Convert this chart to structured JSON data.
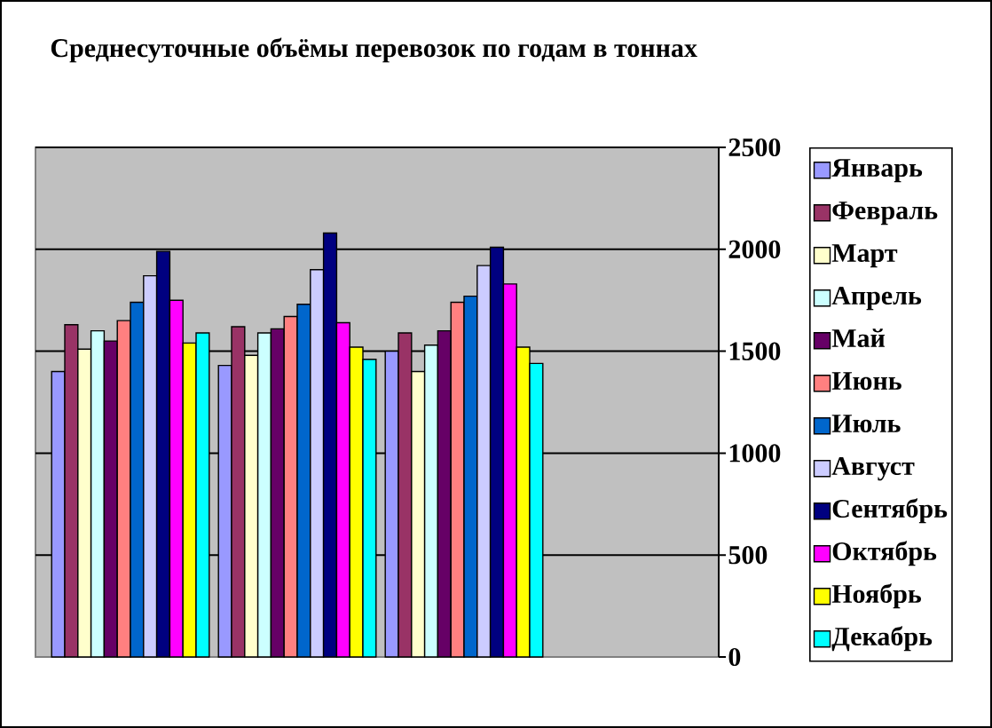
{
  "chart_data": {
    "type": "bar",
    "title": "Среднесуточные объёмы перевозок по годам в тоннах",
    "categories": [
      null,
      null,
      null
    ],
    "series": [
      {
        "name": "Январь",
        "color": "#9999ff",
        "values": [
          1400,
          1430,
          1500
        ]
      },
      {
        "name": "Февраль",
        "color": "#993366",
        "values": [
          1630,
          1620,
          1590
        ]
      },
      {
        "name": "Март",
        "color": "#ffffcc",
        "values": [
          1510,
          1480,
          1400
        ]
      },
      {
        "name": "Апрель",
        "color": "#ccffff",
        "values": [
          1600,
          1590,
          1530
        ]
      },
      {
        "name": "Май",
        "color": "#660066",
        "values": [
          1550,
          1610,
          1600
        ]
      },
      {
        "name": "Июнь",
        "color": "#ff8080",
        "values": [
          1650,
          1670,
          1740
        ]
      },
      {
        "name": "Июль",
        "color": "#0066cc",
        "values": [
          1740,
          1730,
          1770
        ]
      },
      {
        "name": "Август",
        "color": "#ccccff",
        "values": [
          1870,
          1900,
          1920
        ]
      },
      {
        "name": "Сентябрь",
        "color": "#000080",
        "values": [
          1990,
          2080,
          2010
        ]
      },
      {
        "name": "Октябрь",
        "color": "#ff00ff",
        "values": [
          1750,
          1640,
          1830
        ]
      },
      {
        "name": "Ноябрь",
        "color": "#ffff00",
        "values": [
          1540,
          1520,
          1520
        ]
      },
      {
        "name": "Декабрь",
        "color": "#00ffff",
        "values": [
          1590,
          1460,
          1440
        ]
      }
    ],
    "ylim": [
      0,
      2500
    ],
    "yticks": [
      0,
      500,
      1000,
      1500,
      2000,
      2500
    ],
    "grid": "y",
    "legend": "right",
    "tick_labels": "y"
  }
}
